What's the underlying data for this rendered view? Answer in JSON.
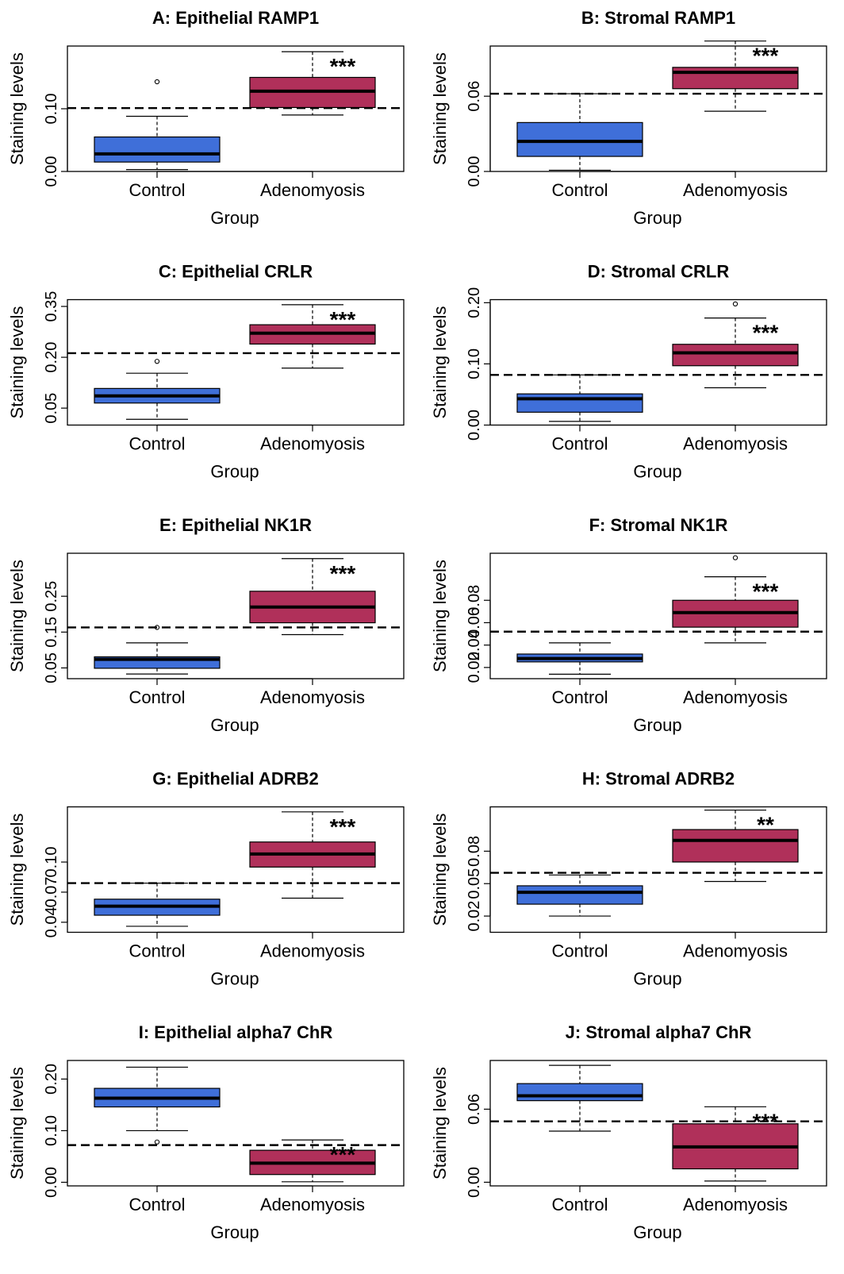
{
  "colors": {
    "control": "#3f6fd9",
    "adenomyosis": "#b0305a",
    "axis": "#000000"
  },
  "chart_data": [
    {
      "type": "box",
      "title": "A: Epithelial RAMP1",
      "xlabel": "Group",
      "ylabel": "Staining levels",
      "categories": [
        "Control",
        "Adenomyosis"
      ],
      "ylim": [
        0,
        0.2
      ],
      "yticks": [
        "0.00",
        "0.10"
      ],
      "threshold": 0.101,
      "significance": "***",
      "boxes": [
        {
          "min": 0.003,
          "q1": 0.015,
          "median": 0.028,
          "q3": 0.055,
          "max": 0.088,
          "outliers": [
            0.143
          ]
        },
        {
          "min": 0.09,
          "q1": 0.102,
          "median": 0.128,
          "q3": 0.15,
          "max": 0.191,
          "outliers": []
        }
      ]
    },
    {
      "type": "box",
      "title": "B: Stromal RAMP1",
      "xlabel": "Group",
      "ylabel": "Staining levels",
      "categories": [
        "Control",
        "Adenomyosis"
      ],
      "ylim": [
        0,
        0.1
      ],
      "yticks": [
        "0.00",
        "0.06"
      ],
      "threshold": 0.062,
      "significance": "***",
      "boxes": [
        {
          "min": 0.001,
          "q1": 0.012,
          "median": 0.024,
          "q3": 0.039,
          "max": 0.062,
          "outliers": []
        },
        {
          "min": 0.048,
          "q1": 0.066,
          "median": 0.079,
          "q3": 0.083,
          "max": 0.104,
          "outliers": []
        }
      ]
    },
    {
      "type": "box",
      "title": "C: Epithelial CRLR",
      "xlabel": "Group",
      "ylabel": "Staining levels",
      "categories": [
        "Control",
        "Adenomyosis"
      ],
      "ylim": [
        0,
        0.37
      ],
      "yticks": [
        "0.05",
        "0.20",
        "0.35"
      ],
      "threshold": 0.212,
      "significance": "***",
      "boxes": [
        {
          "min": 0.017,
          "q1": 0.065,
          "median": 0.086,
          "q3": 0.108,
          "max": 0.153,
          "outliers": [
            0.188
          ]
        },
        {
          "min": 0.168,
          "q1": 0.239,
          "median": 0.271,
          "q3": 0.296,
          "max": 0.355,
          "outliers": []
        }
      ]
    },
    {
      "type": "box",
      "title": "D: Stromal CRLR",
      "xlabel": "Group",
      "ylabel": "Staining levels",
      "categories": [
        "Control",
        "Adenomyosis"
      ],
      "ylim": [
        0,
        0.205
      ],
      "yticks": [
        "0.00",
        "0.10",
        "0.20"
      ],
      "threshold": 0.082,
      "significance": "***",
      "boxes": [
        {
          "min": 0.006,
          "q1": 0.021,
          "median": 0.043,
          "q3": 0.051,
          "max": 0.082,
          "outliers": []
        },
        {
          "min": 0.061,
          "q1": 0.097,
          "median": 0.118,
          "q3": 0.132,
          "max": 0.175,
          "outliers": [
            0.198
          ]
        }
      ]
    },
    {
      "type": "box",
      "title": "E: Epithelial NK1R",
      "xlabel": "Group",
      "ylabel": "Staining levels",
      "categories": [
        "Control",
        "Adenomyosis"
      ],
      "ylim": [
        0.02,
        0.37
      ],
      "yticks": [
        "0.05",
        "0.15",
        "0.25"
      ],
      "threshold": 0.163,
      "significance": "***",
      "boxes": [
        {
          "min": 0.033,
          "q1": 0.049,
          "median": 0.074,
          "q3": 0.081,
          "max": 0.12,
          "outliers": [
            0.163
          ]
        },
        {
          "min": 0.143,
          "q1": 0.176,
          "median": 0.22,
          "q3": 0.264,
          "max": 0.355,
          "outliers": []
        }
      ]
    },
    {
      "type": "box",
      "title": "F: Stromal NK1R",
      "xlabel": "Group",
      "ylabel": "Staining levels",
      "categories": [
        "Control",
        "Adenomyosis"
      ],
      "ylim": [
        0.01,
        0.122
      ],
      "yticks": [
        "0.02",
        "0.04",
        "0.06",
        "0.08"
      ],
      "threshold": 0.052,
      "significance": "***",
      "boxes": [
        {
          "min": 0.014,
          "q1": 0.025,
          "median": 0.028,
          "q3": 0.032,
          "max": 0.042,
          "outliers": []
        },
        {
          "min": 0.042,
          "q1": 0.056,
          "median": 0.069,
          "q3": 0.08,
          "max": 0.101,
          "outliers": [
            0.118
          ]
        }
      ]
    },
    {
      "type": "box",
      "title": "G: Epithelial ADRB2",
      "xlabel": "Group",
      "ylabel": "Staining levels",
      "categories": [
        "Control",
        "Adenomyosis"
      ],
      "ylim": [
        0.03,
        0.155
      ],
      "yticks": [
        "0.04",
        "0.07",
        "0.10"
      ],
      "threshold": 0.079,
      "significance": "***",
      "boxes": [
        {
          "min": 0.036,
          "q1": 0.047,
          "median": 0.056,
          "q3": 0.063,
          "max": 0.079,
          "outliers": []
        },
        {
          "min": 0.064,
          "q1": 0.095,
          "median": 0.108,
          "q3": 0.12,
          "max": 0.15,
          "outliers": []
        }
      ]
    },
    {
      "type": "box",
      "title": "H: Stromal ADRB2",
      "xlabel": "Group",
      "ylabel": "Staining levels",
      "categories": [
        "Control",
        "Adenomyosis"
      ],
      "ylim": [
        0.005,
        0.121
      ],
      "yticks": [
        "0.02",
        "0.05",
        "0.08"
      ],
      "threshold": 0.06,
      "significance": "**",
      "boxes": [
        {
          "min": 0.02,
          "q1": 0.031,
          "median": 0.042,
          "q3": 0.048,
          "max": 0.058,
          "outliers": []
        },
        {
          "min": 0.052,
          "q1": 0.07,
          "median": 0.09,
          "q3": 0.1,
          "max": 0.118,
          "outliers": []
        }
      ]
    },
    {
      "type": "box",
      "title": "I: Epithelial alpha7 ChR",
      "xlabel": "Group",
      "ylabel": "Staining levels",
      "categories": [
        "Control",
        "Adenomyosis"
      ],
      "ylim": [
        -0.007,
        0.236
      ],
      "yticks": [
        "0.00",
        "0.10",
        "0.20"
      ],
      "threshold": 0.072,
      "significance": "***",
      "boxes": [
        {
          "min": 0.1,
          "q1": 0.146,
          "median": 0.163,
          "q3": 0.182,
          "max": 0.223,
          "outliers": [
            0.078
          ]
        },
        {
          "min": 0.001,
          "q1": 0.015,
          "median": 0.037,
          "q3": 0.062,
          "max": 0.082,
          "outliers": []
        }
      ]
    },
    {
      "type": "box",
      "title": "J: Stromal alpha7 ChR",
      "xlabel": "Group",
      "ylabel": "Staining levels",
      "categories": [
        "Control",
        "Adenomyosis"
      ],
      "ylim": [
        -0.003,
        0.1
      ],
      "yticks": [
        "0.00",
        "0.06"
      ],
      "threshold": 0.05,
      "significance": "***",
      "boxes": [
        {
          "min": 0.042,
          "q1": 0.067,
          "median": 0.071,
          "q3": 0.081,
          "max": 0.096,
          "outliers": []
        },
        {
          "min": 0.001,
          "q1": 0.011,
          "median": 0.029,
          "q3": 0.048,
          "max": 0.062,
          "outliers": []
        }
      ]
    }
  ]
}
